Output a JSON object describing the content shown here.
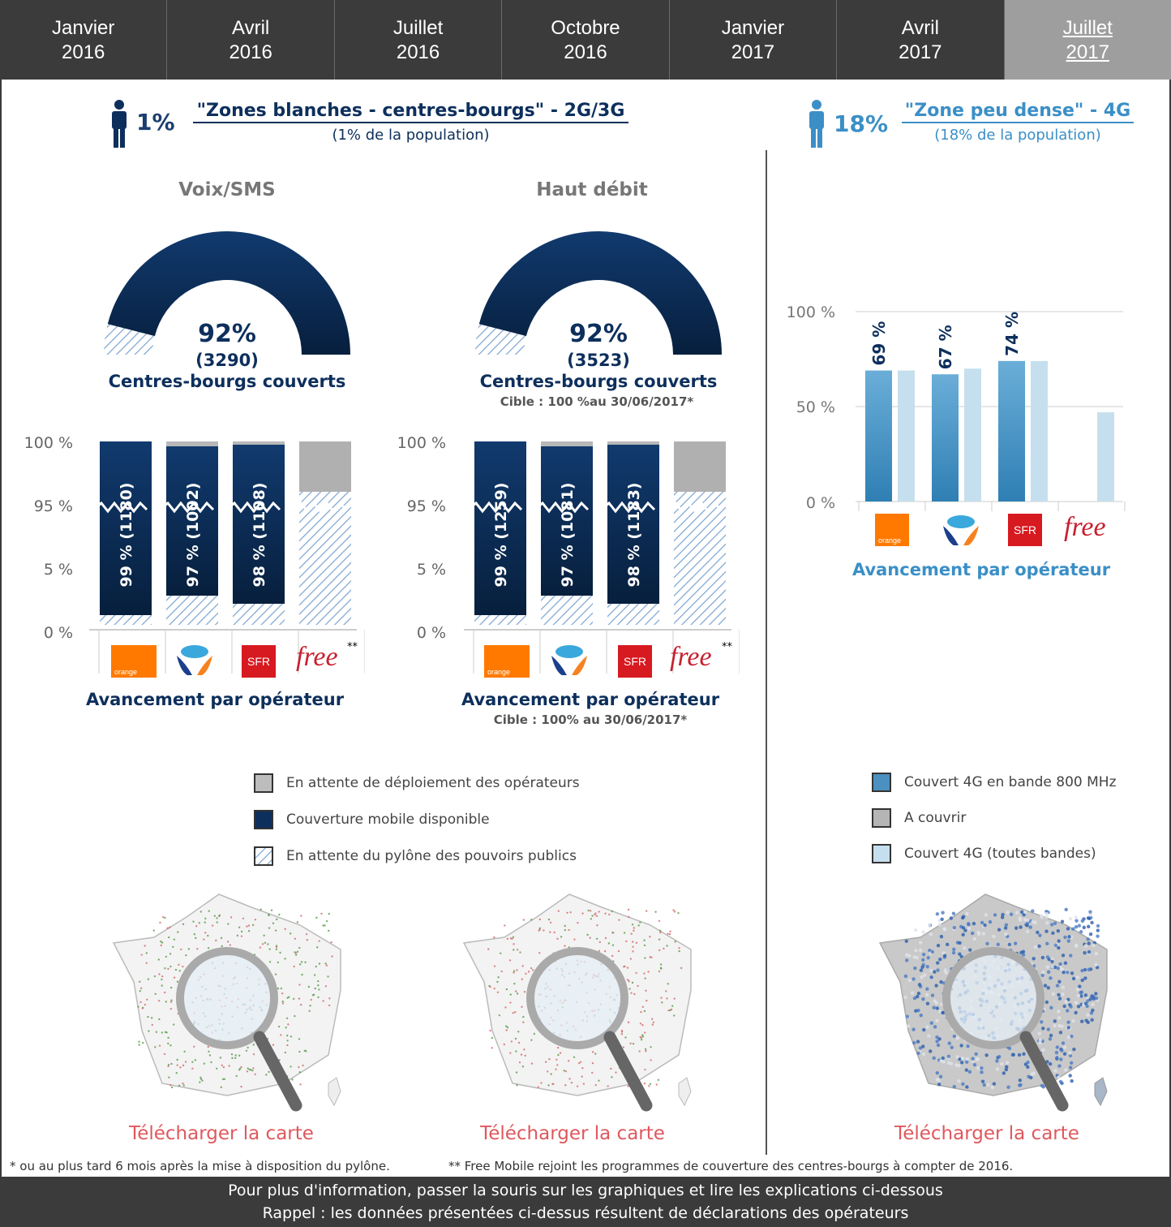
{
  "tabs": [
    {
      "line1": "Janvier",
      "line2": "2016"
    },
    {
      "line1": "Avril",
      "line2": "2016"
    },
    {
      "line1": "Juillet",
      "line2": "2016"
    },
    {
      "line1": "Octobre",
      "line2": "2016"
    },
    {
      "line1": "Janvier",
      "line2": "2017"
    },
    {
      "line1": "Avril",
      "line2": "2017"
    },
    {
      "line1": "Juillet",
      "line2": "2017"
    }
  ],
  "active_tab": 6,
  "left_header": {
    "pct": "1%",
    "title": "\"Zones blanches - centres-bourgs\" - 2G/3G",
    "subtitle": "(1% de la population)"
  },
  "right_header": {
    "pct": "18%",
    "title": "\"Zone peu dense\" - 4G",
    "subtitle": "(18% de la population)"
  },
  "gauges": [
    {
      "title": "Voix/SMS",
      "pct": "92%",
      "count": "(3290)",
      "label": "Centres-bourgs couverts",
      "cible": ""
    },
    {
      "title": "Haut débit",
      "pct": "92%",
      "count": "(3523)",
      "label": "Centres-bourgs couverts",
      "cible": "Cible : 100 %au 30/06/2017*"
    }
  ],
  "stack_yticks": [
    "100 %",
    "95 %",
    "5 %",
    "0 %"
  ],
  "stack_charts": [
    {
      "bars": [
        {
          "label": "99 % (1180)",
          "covered": 99
        },
        {
          "label": "97 % (1002)",
          "covered": 97
        },
        {
          "label": "98 % (1108)",
          "covered": 98
        },
        {
          "label": "",
          "covered": 0
        }
      ],
      "title": "Avancement par opérateur",
      "cible": ""
    },
    {
      "bars": [
        {
          "label": "99 % (1259)",
          "covered": 99
        },
        {
          "label": "97 % (1081)",
          "covered": 97
        },
        {
          "label": "98 % (1183)",
          "covered": 98
        },
        {
          "label": "",
          "covered": 0
        }
      ],
      "title": "Avancement par opérateur",
      "cible": "Cible : 100% au 30/06/2017*"
    }
  ],
  "operators": {
    "orange": "orange",
    "sfr": "SFR",
    "free": "free",
    "free_note": "**"
  },
  "chart_data": {
    "type": "bar",
    "categories": [
      "Orange",
      "Bouygues Telecom",
      "SFR",
      "Free"
    ],
    "series": [
      {
        "name": "Couvert 4G en bande 800 MHz",
        "values": [
          69,
          67,
          74,
          0
        ]
      },
      {
        "name": "Couvert 4G (toutes bandes)",
        "values": [
          69,
          70,
          74,
          47
        ]
      }
    ],
    "value_labels": [
      "69 %",
      "67 %",
      "74 %",
      ""
    ],
    "yticks": [
      "100 %",
      "50 %",
      "0 %"
    ],
    "ylim": [
      0,
      100
    ],
    "title": "Avancement par opérateur",
    "colors": {
      "band800": "#4a90c0",
      "all": "#c6dfee"
    }
  },
  "legend_left": [
    {
      "label": "En attente de déploiement des opérateurs",
      "kind": "grey"
    },
    {
      "label": "Couverture mobile disponible",
      "kind": "navy"
    },
    {
      "label": "En attente du pylône des pouvoirs publics",
      "kind": "hatch"
    }
  ],
  "legend_right": [
    {
      "label": "Couvert 4G en bande 800 MHz",
      "kind": "blue"
    },
    {
      "label": "A couvrir",
      "kind": "grey"
    },
    {
      "label": "Couvert 4G (toutes bandes)",
      "kind": "light"
    }
  ],
  "download": [
    "Télécharger la carte",
    "Télécharger la carte",
    "Télécharger la carte"
  ],
  "footnotes": {
    "left": "* ou au plus tard 6 mois après la mise à disposition du pylône.",
    "right": "** Free Mobile rejoint les programmes de couverture des centres-bourgs à compter de 2016."
  },
  "bottom": {
    "line1": "Pour plus d'information, passer la souris sur les graphiques et lire les explications ci-dessous",
    "line2": "Rappel : les données présentées ci-dessus résultent de déclarations des opérateurs"
  },
  "colors": {
    "navy": "#0d2f5c",
    "grey_pending": "#b8b8b8",
    "hatch": "#8aaed4",
    "accent_red": "#e0585d",
    "right_blue": "#3b8fc6"
  }
}
